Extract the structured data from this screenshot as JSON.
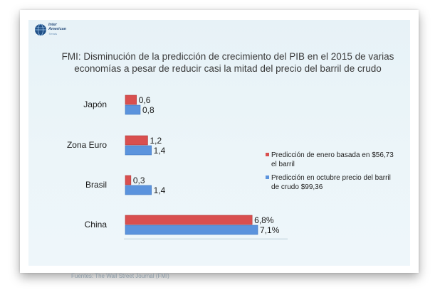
{
  "logo": {
    "line1": "Inter",
    "line2": "American",
    "line3": "Trends"
  },
  "source": "Fuentes: The Wall Street Journal  (FMI)",
  "colors": {
    "red": "#d94f4f",
    "blue": "#5b93dd",
    "background": "#e9f3f8"
  },
  "chart_data": {
    "type": "bar",
    "orientation": "horizontal",
    "title": "FMI: Disminución de la predicción de crecimiento del PIB en el 2015 de varias economías a pesar de reducir casi la mitad del precio del barril de crudo",
    "categories": [
      "Japón",
      "Zona Euro",
      "Brasil",
      "China"
    ],
    "series": [
      {
        "name": "Predicción de enero basada en $56,73 el barril",
        "values": [
          0.6,
          1.2,
          0.3,
          6.8
        ],
        "value_labels": [
          "0,6",
          "1,2",
          "0,3",
          "6,8%"
        ],
        "color": "#d94f4f"
      },
      {
        "name": "Predicción en octubre precio del barril de crudo $99,36",
        "values": [
          0.8,
          1.4,
          1.4,
          7.1
        ],
        "value_labels": [
          "0,8",
          "1,4",
          "1,4",
          "7,1%"
        ],
        "color": "#5b93dd"
      }
    ],
    "legend_position": "right",
    "grid": false
  }
}
